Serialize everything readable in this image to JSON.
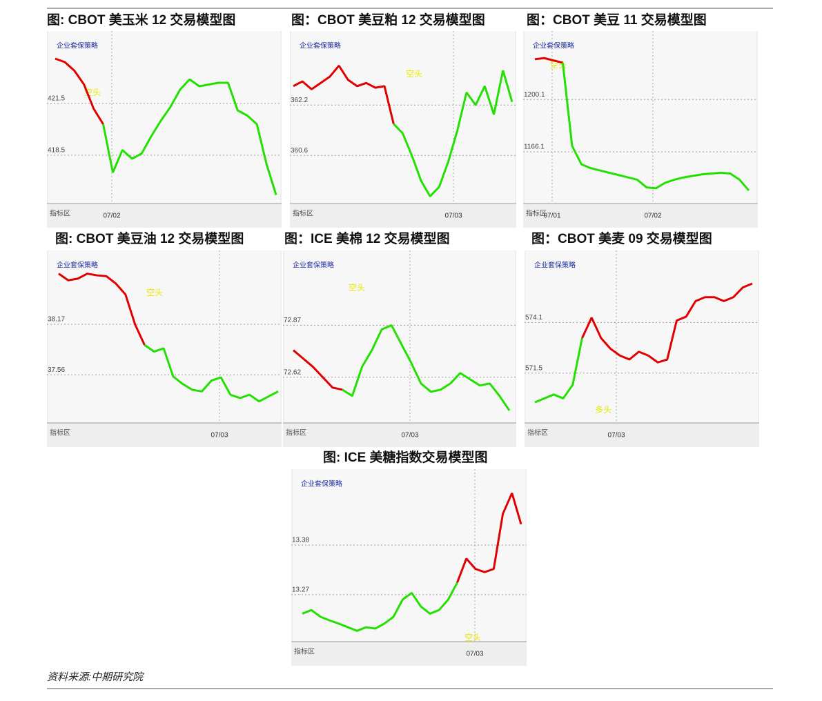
{
  "chart_data": [
    {
      "type": "line",
      "title": "图: CBOT 美玉米 12 交易模型图",
      "brand": "企业套保策略",
      "indicator": "指标区",
      "annotation": "空头",
      "x_labels": [
        "07/02"
      ],
      "ylim": [
        415.7,
        425.7
      ],
      "yticks": [
        421.5,
        418.5
      ],
      "grid": true,
      "series": [
        {
          "color": "#e00000",
          "values": [
            424.1,
            423.9,
            423.4,
            422.6,
            421.2,
            420.3,
            null,
            null,
            null,
            null,
            null,
            null,
            null,
            null,
            null,
            null,
            null,
            null,
            null,
            null,
            null,
            null,
            null,
            null
          ]
        },
        {
          "color": "#22e000",
          "values": [
            null,
            null,
            null,
            null,
            null,
            420.3,
            417.5,
            418.8,
            418.3,
            418.6,
            419.6,
            420.5,
            421.3,
            422.3,
            422.9,
            422.5,
            422.6,
            422.7,
            422.7,
            421.1,
            420.8,
            420.3,
            418.0,
            416.2
          ]
        }
      ]
    },
    {
      "type": "line",
      "title": "图：CBOT 美豆粕 12 交易模型图",
      "brand": "企业套保策略",
      "indicator": "指标区",
      "annotation": "空头",
      "x_labels": [
        "07/03"
      ],
      "ylim": [
        359.07,
        364.55
      ],
      "yticks": [
        362.2,
        360.6
      ],
      "grid": true,
      "series": [
        {
          "color": "#e00000",
          "values": [
            362.8,
            362.95,
            362.7,
            362.9,
            363.1,
            363.45,
            363.0,
            362.8,
            362.9,
            362.75,
            362.8,
            361.6,
            null,
            null,
            null,
            null,
            null,
            null,
            null,
            null,
            null,
            null,
            null,
            null,
            null
          ]
        },
        {
          "color": "#22e000",
          "values": [
            null,
            null,
            null,
            null,
            null,
            null,
            null,
            null,
            null,
            null,
            null,
            361.6,
            361.3,
            360.6,
            359.8,
            359.3,
            359.6,
            360.4,
            361.4,
            362.6,
            362.2,
            362.8,
            361.9,
            363.3,
            362.3
          ]
        }
      ]
    },
    {
      "type": "line",
      "title": "图：CBOT 美豆 11 交易模型图",
      "brand": "企业套保策略",
      "indicator": "指标区",
      "annotation": "空头",
      "x_labels": [
        "07/01",
        "07/02"
      ],
      "ylim": [
        1132.5,
        1244.6
      ],
      "yticks": [
        1200.1,
        1166.1
      ],
      "grid": true,
      "series": [
        {
          "color": "#e00000",
          "values": [
            1226.3,
            1227,
            1225.5,
            1224,
            null,
            null,
            null,
            null,
            null,
            null,
            null,
            null,
            null,
            null,
            null,
            null,
            null,
            null,
            null,
            null,
            null,
            null,
            null,
            null
          ]
        },
        {
          "color": "#22e000",
          "values": [
            null,
            null,
            null,
            1224,
            1170,
            1158,
            1155.5,
            1154,
            1152.5,
            1151,
            1149.5,
            1148,
            1143,
            1142.4,
            1146,
            1148,
            1149.5,
            1150.5,
            1151.5,
            1152,
            1152.5,
            1152,
            1148,
            1141
          ]
        }
      ]
    },
    {
      "type": "line",
      "title": "图: CBOT 美豆油 12 交易模型图",
      "brand": "企业套保策略",
      "indicator": "指标区",
      "annotation": "空头",
      "x_labels": [
        "07/03"
      ],
      "ylim": [
        36.98,
        39.06
      ],
      "yticks": [
        38.17,
        37.56
      ],
      "grid": true,
      "series": [
        {
          "color": "#e00000",
          "values": [
            38.78,
            38.7,
            38.72,
            38.78,
            38.76,
            38.75,
            38.66,
            38.53,
            38.17,
            37.92,
            null,
            null,
            null,
            null,
            null,
            null,
            null,
            null,
            null,
            null,
            null,
            null,
            null,
            null
          ]
        },
        {
          "color": "#22e000",
          "values": [
            null,
            null,
            null,
            null,
            null,
            null,
            null,
            null,
            null,
            37.92,
            37.84,
            37.88,
            37.54,
            37.45,
            37.38,
            37.36,
            37.49,
            37.53,
            37.32,
            37.28,
            37.32,
            37.24,
            37.3,
            37.36
          ]
        }
      ]
    },
    {
      "type": "line",
      "title": "图：ICE 美棉 12 交易模型图",
      "brand": "企业套保策略",
      "indicator": "指标区",
      "annotation": "空头",
      "x_labels": [
        "07/03"
      ],
      "ylim": [
        72.4,
        73.23
      ],
      "yticks": [
        72.87,
        72.62
      ],
      "grid": true,
      "series": [
        {
          "color": "#e00000",
          "values": [
            72.75,
            72.71,
            72.67,
            72.62,
            72.57,
            72.56,
            null,
            null,
            null,
            null,
            null,
            null,
            null,
            null,
            null,
            null,
            null,
            null,
            null,
            null,
            null,
            null,
            null
          ]
        },
        {
          "color": "#22e000",
          "values": [
            null,
            null,
            null,
            null,
            null,
            72.56,
            72.53,
            72.67,
            72.75,
            72.85,
            72.87,
            72.78,
            72.69,
            72.59,
            72.55,
            72.56,
            72.59,
            72.64,
            72.61,
            72.58,
            72.59,
            72.53,
            72.46
          ]
        }
      ]
    },
    {
      "type": "line",
      "title": "图：CBOT 美麦 09 交易模型图",
      "brand": "企业套保策略",
      "indicator": "指标区",
      "annotation": "多头",
      "x_labels": [
        "07/03"
      ],
      "ylim": [
        568.94,
        577.8
      ],
      "yticks": [
        574.1,
        571.5
      ],
      "grid": true,
      "series": [
        {
          "color": "#22e000",
          "values": [
            570.0,
            570.2,
            570.4,
            570.2,
            570.9,
            573.3,
            null,
            null,
            null,
            null,
            null,
            null,
            null,
            null,
            null,
            null,
            null,
            null,
            null,
            null,
            null,
            null,
            null,
            null
          ]
        },
        {
          "color": "#e00000",
          "values": [
            null,
            null,
            null,
            null,
            null,
            573.3,
            574.35,
            573.3,
            572.75,
            572.4,
            572.2,
            572.6,
            572.4,
            572.05,
            572.2,
            574.2,
            574.4,
            575.2,
            575.4,
            575.4,
            575.2,
            575.4,
            575.9,
            576.1
          ]
        }
      ]
    },
    {
      "type": "line",
      "title": "图: ICE 美糖指数交易模型图",
      "brand": "企业套保策略",
      "indicator": "指标区",
      "annotation": "空头",
      "x_labels": [
        "07/03"
      ],
      "ylim": [
        13.166,
        13.548
      ],
      "yticks": [
        13.38,
        13.27
      ],
      "grid": true,
      "series": [
        {
          "color": "#22e000",
          "values": [
            13.228,
            13.236,
            13.221,
            13.213,
            13.206,
            13.198,
            13.19,
            13.198,
            13.195,
            13.206,
            13.221,
            13.259,
            13.274,
            13.244,
            13.228,
            13.236,
            13.259,
            13.297,
            null,
            null,
            null,
            null,
            null,
            null,
            null
          ]
        },
        {
          "color": "#e00000",
          "values": [
            null,
            null,
            null,
            null,
            null,
            null,
            null,
            null,
            null,
            null,
            null,
            null,
            null,
            null,
            null,
            null,
            null,
            13.297,
            13.35,
            13.327,
            13.32,
            13.327,
            13.449,
            13.495,
            13.426
          ]
        }
      ]
    }
  ],
  "source": "资料来源:中期研究院"
}
